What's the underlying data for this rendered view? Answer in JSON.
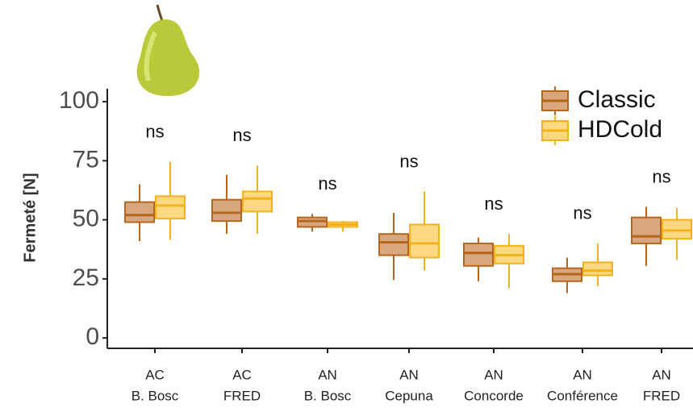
{
  "chart_data": {
    "type": "box",
    "y_label": "Fermeté [N]",
    "categories": [
      [
        "AC",
        "B. Bosc"
      ],
      [
        "AC",
        "FRED"
      ],
      [
        "AN",
        "B. Bosc"
      ],
      [
        "AN",
        "Cepuna"
      ],
      [
        "AN",
        "Concorde"
      ],
      [
        "AN",
        "Conférence"
      ],
      [
        "AN",
        "FRED"
      ]
    ],
    "annotations": [
      "ns",
      "ns",
      "ns",
      "ns",
      "ns",
      "ns",
      "ns"
    ],
    "series": [
      {
        "name": "Classic",
        "color": "#d9a77e",
        "edge_color": "#b5661f",
        "boxes": [
          {
            "min": 41,
            "q1": 49,
            "median": 52,
            "q3": 57.5,
            "max": 65
          },
          {
            "min": 44,
            "q1": 49.5,
            "median": 53,
            "q3": 58.5,
            "max": 69
          },
          {
            "min": 45,
            "q1": 47,
            "median": 49.5,
            "q3": 51,
            "max": 52.5
          },
          {
            "min": 24.5,
            "q1": 35,
            "median": 40.5,
            "q3": 44,
            "max": 53
          },
          {
            "min": 24,
            "q1": 30.5,
            "median": 36,
            "q3": 40,
            "max": 42.5
          },
          {
            "min": 19,
            "q1": 24,
            "median": 27,
            "q3": 29.5,
            "max": 34
          },
          {
            "min": 30.5,
            "q1": 40,
            "median": 43,
            "q3": 51,
            "max": 55.5
          }
        ]
      },
      {
        "name": "HDCold",
        "color": "#fdd882",
        "edge_color": "#f3b21d",
        "boxes": [
          {
            "min": 41.5,
            "q1": 50.5,
            "median": 56,
            "q3": 60,
            "max": 74.5
          },
          {
            "min": 44,
            "q1": 53.5,
            "median": 59,
            "q3": 62,
            "max": 73
          },
          {
            "min": 45,
            "q1": 47,
            "median": 48,
            "q3": 49,
            "max": 49.5
          },
          {
            "min": 28.5,
            "q1": 34,
            "median": 40,
            "q3": 48,
            "max": 62
          },
          {
            "min": 21,
            "q1": 31.5,
            "median": 35,
            "q3": 39,
            "max": 44
          },
          {
            "min": 22,
            "q1": 26.5,
            "median": 28.5,
            "q3": 32,
            "max": 40
          },
          {
            "min": 33,
            "q1": 42,
            "median": 45.5,
            "q3": 50,
            "max": 55
          }
        ]
      }
    ],
    "ylim": [
      -4.4,
      105.5
    ],
    "yticks": [
      0,
      25,
      50,
      75,
      100
    ],
    "legend": "top-right"
  }
}
